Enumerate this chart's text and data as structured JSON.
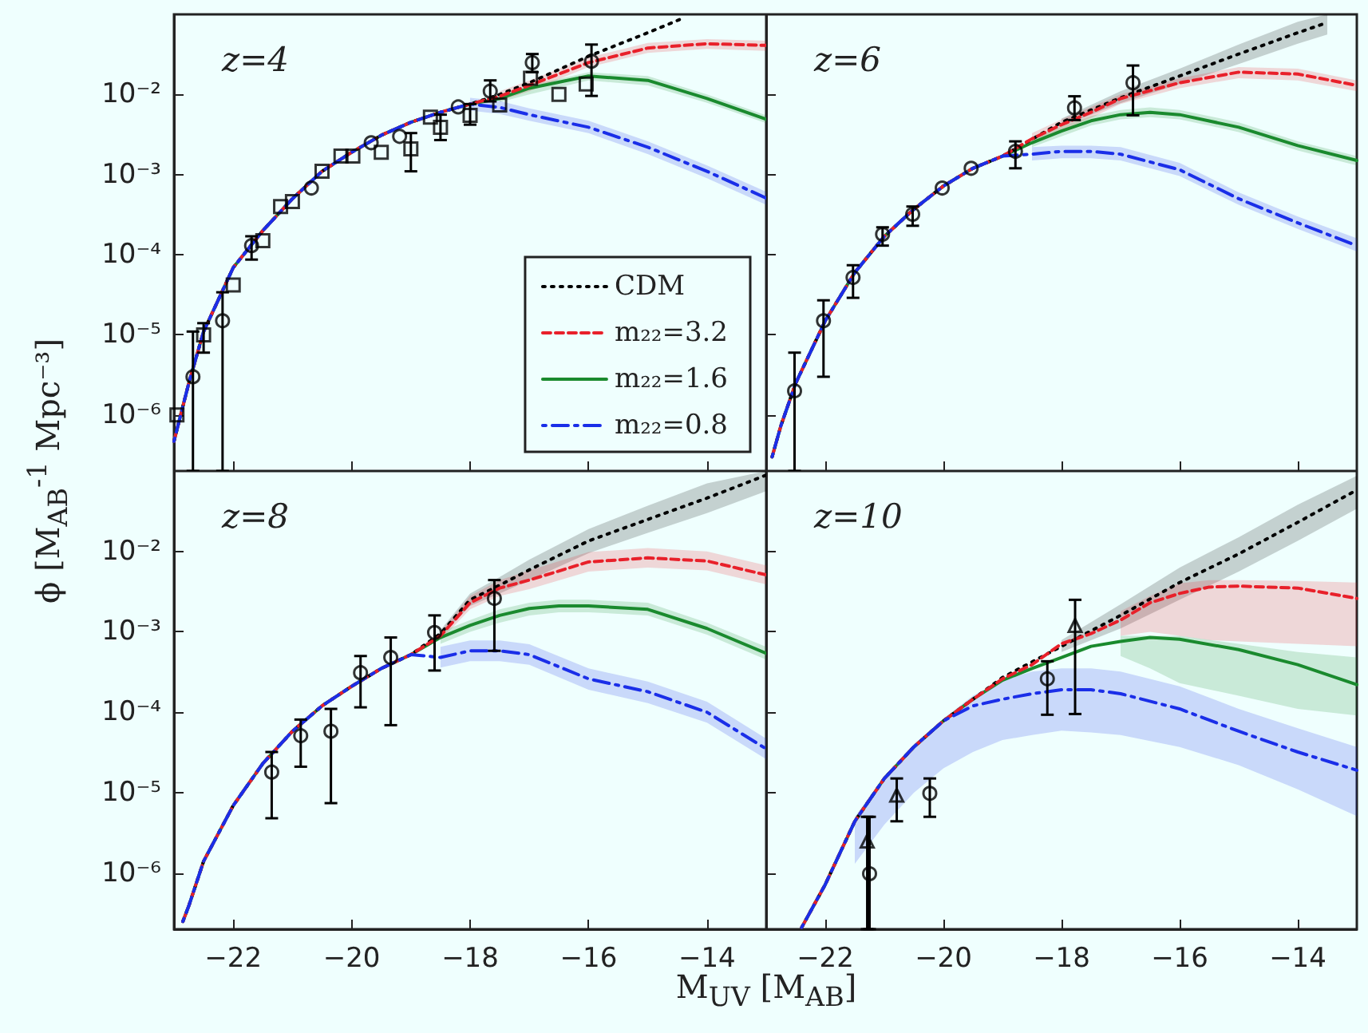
{
  "chart_data": [
    {
      "type": "line",
      "annotations": [
        "z=4"
      ],
      "ylabel": "ϕ [M$_{AB}$$^{-1}$ Mpc⁻³]",
      "log": "y",
      "legend": "bottom right",
      "tick_labels": "y",
      "xlim": [
        -23,
        -13
      ],
      "xticks": [
        {
          "value": -22,
          "label": null
        },
        {
          "value": -20,
          "label": null
        },
        {
          "value": -18,
          "label": null
        },
        {
          "value": -16,
          "label": null
        },
        {
          "value": -14,
          "label": null
        }
      ],
      "ylim": [
        2e-07,
        0.1
      ],
      "yticks": [
        {
          "value": 1e-06,
          "label": "10⁻⁶"
        },
        {
          "value": 1e-05,
          "label": "10⁻⁵"
        },
        {
          "value": 0.0001,
          "label": "10⁻⁴"
        },
        {
          "value": 0.001,
          "label": "10⁻³"
        },
        {
          "value": 0.01,
          "label": "10⁻²"
        }
      ],
      "series": [
        {
          "type": "line",
          "name": "CDM",
          "color": "#000000",
          "line_style": "dotted",
          "x": [
            -23,
            -22.75,
            -22.5,
            -22,
            -21.5,
            -21,
            -20.5,
            -20,
            -19.5,
            -19,
            -18.5,
            -18,
            -17.5,
            -17,
            -16,
            -15,
            -14.4
          ],
          "values": [
            4.7e-07,
            2.5e-06,
            1.1e-05,
            6.9e-05,
            0.0002,
            0.0005,
            0.0011,
            0.0019,
            0.0031,
            0.0045,
            0.006,
            0.0076,
            0.01,
            0.014,
            0.03,
            0.059,
            0.09
          ]
        },
        {
          "type": "line",
          "name": "m₂₂=3.2",
          "color": "#e8202a",
          "line_style": "dashed",
          "x": [
            -23,
            -22.75,
            -22.5,
            -22,
            -21.5,
            -21,
            -20.5,
            -20,
            -19.5,
            -19,
            -18.5,
            -18,
            -17.5,
            -17,
            -16,
            -15,
            -14,
            -13
          ],
          "values": [
            4.7e-07,
            2.5e-06,
            1.1e-05,
            6.9e-05,
            0.0002,
            0.0005,
            0.0011,
            0.0019,
            0.0031,
            0.0045,
            0.006,
            0.0076,
            0.0095,
            0.013,
            0.025,
            0.038,
            0.043,
            0.041
          ],
          "lower": [
            null,
            null,
            null,
            null,
            null,
            null,
            null,
            null,
            null,
            null,
            null,
            null,
            0.0083,
            0.011,
            0.022,
            0.033,
            0.037,
            0.035
          ],
          "upper": [
            null,
            null,
            null,
            null,
            null,
            null,
            null,
            null,
            null,
            null,
            null,
            null,
            0.011,
            0.015,
            0.029,
            0.044,
            0.049,
            0.047
          ]
        },
        {
          "type": "line",
          "name": "m₂₂=1.6",
          "color": "#1a8a2e",
          "line_style": "solid",
          "x": [
            -23,
            -22.75,
            -22.5,
            -22,
            -21.5,
            -21,
            -20.5,
            -20,
            -19.5,
            -19,
            -18.5,
            -18,
            -17.5,
            -17,
            -16,
            -15,
            -14,
            -13
          ],
          "values": [
            4.7e-07,
            2.5e-06,
            1.1e-05,
            6.9e-05,
            0.0002,
            0.0005,
            0.0011,
            0.0019,
            0.0031,
            0.0045,
            0.006,
            0.0076,
            0.0089,
            0.012,
            0.017,
            0.015,
            0.0089,
            0.0049
          ],
          "lower": [
            null,
            null,
            null,
            null,
            null,
            null,
            null,
            null,
            null,
            null,
            null,
            null,
            0.008,
            0.01,
            0.015,
            0.013,
            0.0079,
            0.0044
          ],
          "upper": [
            null,
            null,
            null,
            null,
            null,
            null,
            null,
            null,
            null,
            null,
            null,
            null,
            0.01,
            0.013,
            0.019,
            0.017,
            0.01,
            0.0055
          ]
        },
        {
          "type": "line",
          "name": "m₂₂=0.8",
          "color": "#1a2ee8",
          "line_style": "dashdot",
          "x": [
            -23,
            -22.75,
            -22.5,
            -22,
            -21.5,
            -21,
            -20.5,
            -20,
            -19.5,
            -19,
            -18.5,
            -18,
            -17.5,
            -17,
            -16,
            -15,
            -14,
            -13
          ],
          "values": [
            4.7e-07,
            2.5e-06,
            1.1e-05,
            6.9e-05,
            0.0002,
            0.0005,
            0.0011,
            0.0019,
            0.0031,
            0.0045,
            0.006,
            0.0076,
            0.0069,
            0.0056,
            0.0039,
            0.0022,
            0.0011,
            0.00051
          ],
          "lower": [
            null,
            null,
            null,
            null,
            null,
            null,
            null,
            null,
            null,
            null,
            null,
            0.0063,
            0.0057,
            0.0047,
            0.0033,
            0.0018,
            0.0009,
            0.00042
          ],
          "upper": [
            null,
            null,
            null,
            null,
            null,
            null,
            null,
            null,
            null,
            null,
            null,
            0.0091,
            0.0083,
            0.0067,
            0.0047,
            0.0026,
            0.0013,
            0.00061
          ]
        },
        {
          "type": "scatter",
          "color": "#000000",
          "marker": "circle",
          "x": [
            -22.68,
            -22.18,
            -21.69,
            -20.68,
            -19.67,
            -19.19,
            -18.2,
            -17.66,
            -16.95,
            -15.95
          ],
          "values": [
            3e-06,
            1.5e-05,
            0.00013,
            0.00068,
            0.0025,
            0.003,
            0.007,
            0.011,
            0.025,
            0.026
          ],
          "errors": [
            [
              2e-07,
              1.1e-05
            ],
            [
              2e-07,
              3.4e-05
            ],
            [
              8.7e-05,
              0.00017
            ],
            null,
            null,
            null,
            null,
            [
              0.0082,
              0.015
            ],
            [
              0.019,
              0.032
            ],
            [
              0.0096,
              0.042
            ]
          ]
        },
        {
          "type": "scatter",
          "color": "#000000",
          "marker": "square",
          "x": [
            -22.95,
            -22.5,
            -22.0,
            -21.5,
            -21.2,
            -21.0,
            -20.5,
            -20.18,
            -19.98,
            -19.5,
            -19.0,
            -18.67,
            -18.5,
            -18.0,
            -17.5,
            -16.98,
            -16.5,
            -16.04
          ],
          "values": [
            1e-06,
            1e-05,
            4.2e-05,
            0.00015,
            0.0004,
            0.00046,
            0.0011,
            0.0017,
            0.0017,
            0.0019,
            0.0021,
            0.0052,
            0.0039,
            0.0055,
            0.0074,
            0.016,
            0.01,
            0.0135
          ],
          "errors": [
            null,
            [
              6e-06,
              1.4e-05
            ],
            null,
            null,
            null,
            null,
            null,
            null,
            null,
            null,
            [
              0.0011,
              0.0033
            ],
            null,
            [
              0.0027,
              0.0056
            ],
            [
              0.0042,
              0.0076
            ],
            null,
            null,
            null,
            null
          ]
        }
      ]
    },
    {
      "type": "line",
      "annotations": [
        "z=6"
      ],
      "log": "y",
      "tick_labels": false,
      "xlim": [
        -23,
        -13
      ],
      "xticks": [
        {
          "value": -22,
          "label": null
        },
        {
          "value": -20,
          "label": null
        },
        {
          "value": -18,
          "label": null
        },
        {
          "value": -16,
          "label": null
        },
        {
          "value": -14,
          "label": null
        }
      ],
      "ylim": [
        2e-07,
        0.1
      ],
      "yticks": [
        {
          "value": 1e-06,
          "label": null
        },
        {
          "value": 1e-05,
          "label": null
        },
        {
          "value": 0.0001,
          "label": null
        },
        {
          "value": 0.001,
          "label": null
        },
        {
          "value": 0.01,
          "label": null
        }
      ],
      "series": [
        {
          "type": "line",
          "color": "#000000",
          "line_style": "dotted",
          "x": [
            -22.9,
            -22.75,
            -22.5,
            -22,
            -21.5,
            -21,
            -20.5,
            -20,
            -19.5,
            -19,
            -18,
            -17,
            -16,
            -15,
            -14,
            -13.5
          ],
          "values": [
            3e-07,
            7.4e-07,
            2.5e-06,
            1.5e-05,
            6e-05,
            0.00017,
            0.00037,
            0.00072,
            0.0012,
            0.0017,
            0.0045,
            0.0091,
            0.017,
            0.032,
            0.059,
            0.079
          ],
          "lower": [
            null,
            null,
            null,
            null,
            null,
            null,
            null,
            null,
            null,
            null,
            0.004,
            0.0078,
            0.0135,
            0.024,
            0.043,
            0.056
          ],
          "upper": [
            null,
            null,
            null,
            null,
            null,
            null,
            null,
            null,
            null,
            null,
            0.005,
            0.011,
            0.021,
            0.042,
            0.081,
            0.1
          ]
        },
        {
          "type": "line",
          "color": "#e8202a",
          "line_style": "dashed",
          "x": [
            -22.9,
            -22.75,
            -22.5,
            -22,
            -21.5,
            -21,
            -20.5,
            -20,
            -19.5,
            -19,
            -18.5,
            -18,
            -17.5,
            -17,
            -16,
            -15,
            -14,
            -13
          ],
          "values": [
            3e-07,
            7.4e-07,
            2.5e-06,
            1.5e-05,
            6e-05,
            0.00017,
            0.00037,
            0.00072,
            0.0012,
            0.0017,
            0.0028,
            0.0042,
            0.006,
            0.0089,
            0.014,
            0.019,
            0.018,
            0.013
          ],
          "lower": [
            null,
            null,
            null,
            null,
            null,
            null,
            null,
            null,
            null,
            null,
            0.0024,
            0.0036,
            0.0051,
            0.0076,
            0.012,
            0.016,
            0.015,
            0.011
          ],
          "upper": [
            null,
            null,
            null,
            null,
            null,
            null,
            null,
            null,
            null,
            null,
            0.0033,
            0.0049,
            0.007,
            0.01,
            0.016,
            0.022,
            0.021,
            0.015
          ]
        },
        {
          "type": "line",
          "color": "#1a8a2e",
          "line_style": "solid",
          "x": [
            -22.9,
            -22.75,
            -22.5,
            -22,
            -21.5,
            -21,
            -20.5,
            -20,
            -19.5,
            -19,
            -18.5,
            -18,
            -17.5,
            -17,
            -16.5,
            -16,
            -15,
            -14,
            -13
          ],
          "values": [
            3e-07,
            7.4e-07,
            2.5e-06,
            1.5e-05,
            6e-05,
            0.00017,
            0.00037,
            0.00072,
            0.0012,
            0.0017,
            0.0025,
            0.0035,
            0.0047,
            0.0056,
            0.006,
            0.0056,
            0.0039,
            0.0023,
            0.0015
          ],
          "lower": [
            null,
            null,
            null,
            null,
            null,
            null,
            null,
            null,
            null,
            null,
            0.0022,
            0.003,
            0.0041,
            0.0049,
            0.0052,
            0.0049,
            0.0034,
            0.002,
            0.0013
          ],
          "upper": [
            null,
            null,
            null,
            null,
            null,
            null,
            null,
            null,
            null,
            null,
            0.0029,
            0.004,
            0.0054,
            0.0064,
            0.0069,
            0.0064,
            0.0045,
            0.0026,
            0.0017
          ]
        },
        {
          "type": "line",
          "color": "#1a2ee8",
          "line_style": "dashdot",
          "x": [
            -22.9,
            -22.75,
            -22.5,
            -22,
            -21.5,
            -21,
            -20.5,
            -20,
            -19.5,
            -19,
            -18.5,
            -18,
            -17.5,
            -17,
            -16,
            -15,
            -14,
            -13
          ],
          "values": [
            3e-07,
            7.4e-07,
            2.5e-06,
            1.5e-05,
            6e-05,
            0.00017,
            0.00037,
            0.00072,
            0.0012,
            0.0017,
            0.0018,
            0.00195,
            0.00195,
            0.0018,
            0.00115,
            0.0005,
            0.00025,
            0.00013
          ],
          "lower": [
            null,
            null,
            null,
            null,
            null,
            null,
            null,
            null,
            null,
            null,
            0.0015,
            0.0016,
            0.0016,
            0.0015,
            0.00096,
            0.00042,
            0.00021,
            0.00011
          ],
          "upper": [
            null,
            null,
            null,
            null,
            null,
            null,
            null,
            null,
            null,
            null,
            0.0022,
            0.0023,
            0.0023,
            0.0022,
            0.0014,
            0.0006,
            0.0003,
            0.00016
          ]
        },
        {
          "type": "scatter",
          "color": "#000000",
          "marker": "circle",
          "x": [
            -22.52,
            -22.03,
            -21.53,
            -21.03,
            -20.52,
            -20.02,
            -19.53,
            -18.78,
            -17.78,
            -16.79
          ],
          "values": [
            2e-06,
            1.5e-05,
            5.2e-05,
            0.00018,
            0.00032,
            0.00068,
            0.0012,
            0.00195,
            0.0068,
            0.014
          ],
          "errors": [
            [
              2e-07,
              6e-06
            ],
            [
              3e-06,
              2.7e-05
            ],
            [
              2.9e-05,
              7.4e-05
            ],
            [
              0.00013,
              0.00022
            ],
            [
              0.00023,
              0.0004
            ],
            null,
            null,
            [
              0.0012,
              0.0026
            ],
            [
              0.0048,
              0.0095
            ],
            [
              0.0055,
              0.023
            ]
          ]
        }
      ]
    },
    {
      "type": "line",
      "annotations": [
        "z=8"
      ],
      "log": "y",
      "xlabel": "M$_{UV}$ [M$_{AB}$]",
      "xlim": [
        -23,
        -13
      ],
      "xticks": [
        {
          "value": -22,
          "label": "−22"
        },
        {
          "value": -20,
          "label": "−20"
        },
        {
          "value": -18,
          "label": "−18"
        },
        {
          "value": -16,
          "label": "−16"
        },
        {
          "value": -14,
          "label": "−14"
        }
      ],
      "ylim": [
        2e-07,
        0.1
      ],
      "yticks": [
        {
          "value": 1e-06,
          "label": "10⁻⁶"
        },
        {
          "value": 1e-05,
          "label": "10⁻⁵"
        },
        {
          "value": 0.0001,
          "label": "10⁻⁴"
        },
        {
          "value": 0.001,
          "label": "10⁻³"
        },
        {
          "value": 0.01,
          "label": "10⁻²"
        }
      ],
      "series": [
        {
          "type": "line",
          "color": "#000000",
          "line_style": "dotted",
          "x": [
            -22.85,
            -22.75,
            -22.5,
            -22,
            -21.5,
            -21,
            -20.5,
            -20,
            -19.5,
            -19,
            -18.5,
            -18,
            -17.5,
            -17,
            -16,
            -15,
            -14,
            -13
          ],
          "values": [
            2.5e-07,
            3.9e-07,
            1.4e-06,
            6.9e-06,
            2.3e-05,
            5.8e-05,
            0.00012,
            0.00021,
            0.00035,
            0.00052,
            0.00095,
            0.0025,
            0.0038,
            0.0059,
            0.0135,
            0.025,
            0.046,
            0.089
          ],
          "lower": [
            null,
            null,
            null,
            null,
            null,
            null,
            null,
            null,
            null,
            null,
            0.00087,
            0.0021,
            0.003,
            0.0044,
            0.0095,
            0.017,
            0.03,
            0.056
          ],
          "upper": [
            null,
            null,
            null,
            null,
            null,
            null,
            null,
            null,
            null,
            null,
            0.00105,
            0.003,
            0.0048,
            0.0079,
            0.019,
            0.037,
            0.07,
            0.1
          ]
        },
        {
          "type": "line",
          "color": "#e8202a",
          "line_style": "dashed",
          "x": [
            -22.85,
            -22.75,
            -22.5,
            -22,
            -21.5,
            -21,
            -20.5,
            -20,
            -19.5,
            -19,
            -18.5,
            -18,
            -17.5,
            -17,
            -16,
            -15,
            -14,
            -13
          ],
          "values": [
            2.5e-07,
            3.9e-07,
            1.4e-06,
            6.9e-06,
            2.3e-05,
            5.8e-05,
            0.00012,
            0.00021,
            0.00035,
            0.00052,
            0.00089,
            0.0023,
            0.0035,
            0.0044,
            0.0074,
            0.0083,
            0.0076,
            0.0051
          ],
          "lower": [
            null,
            null,
            null,
            null,
            null,
            null,
            null,
            null,
            null,
            null,
            0.00079,
            0.0019,
            0.0028,
            0.0034,
            0.0056,
            0.0063,
            0.0058,
            0.0039
          ],
          "upper": [
            null,
            null,
            null,
            null,
            null,
            null,
            null,
            null,
            null,
            null,
            0.001,
            0.0028,
            0.0044,
            0.0058,
            0.0098,
            0.011,
            0.01,
            0.0067
          ]
        },
        {
          "type": "line",
          "color": "#1a8a2e",
          "line_style": "solid",
          "x": [
            -22.85,
            -22.75,
            -22.5,
            -22,
            -21.5,
            -21,
            -20.5,
            -20,
            -19.5,
            -19,
            -18.5,
            -18,
            -17.5,
            -17,
            -16.5,
            -16,
            -15,
            -14,
            -13
          ],
          "values": [
            2.5e-07,
            3.9e-07,
            1.4e-06,
            6.9e-06,
            2.3e-05,
            5.8e-05,
            0.00012,
            0.00021,
            0.00035,
            0.00052,
            0.00085,
            0.0012,
            0.0016,
            0.00195,
            0.0021,
            0.0021,
            0.0019,
            0.0011,
            0.00054
          ],
          "lower": [
            null,
            null,
            null,
            null,
            null,
            null,
            null,
            null,
            null,
            null,
            0.00071,
            0.001,
            0.0013,
            0.0016,
            0.00175,
            0.00175,
            0.0016,
            0.00092,
            0.00045
          ],
          "upper": [
            null,
            null,
            null,
            null,
            null,
            null,
            null,
            null,
            null,
            null,
            0.001,
            0.0014,
            0.0019,
            0.0023,
            0.0025,
            0.0025,
            0.0023,
            0.0013,
            0.00065
          ]
        },
        {
          "type": "line",
          "color": "#1a2ee8",
          "line_style": "dashdot",
          "x": [
            -22.85,
            -22.75,
            -22.5,
            -22,
            -21.5,
            -21,
            -20.5,
            -20,
            -19.5,
            -19,
            -18.5,
            -18,
            -17.5,
            -17,
            -16,
            -15,
            -14,
            -13
          ],
          "values": [
            2.5e-07,
            3.9e-07,
            1.4e-06,
            6.9e-06,
            2.3e-05,
            5.8e-05,
            0.00012,
            0.00021,
            0.00035,
            0.00052,
            0.00048,
            0.00058,
            0.00058,
            0.00052,
            0.00026,
            0.00018,
            0.0001,
            3.5e-05
          ],
          "lower": [
            null,
            null,
            null,
            null,
            null,
            null,
            null,
            null,
            null,
            null,
            0.00036,
            0.00043,
            0.00043,
            0.00039,
            0.00019,
            0.00013,
            7.4e-05,
            2.6e-05
          ],
          "upper": [
            null,
            null,
            null,
            null,
            null,
            null,
            null,
            null,
            null,
            null,
            0.00065,
            0.00078,
            0.00078,
            0.0007,
            0.00035,
            0.00024,
            0.000135,
            4.7e-05
          ]
        },
        {
          "type": "scatter",
          "color": "#000000",
          "marker": "circle",
          "x": [
            -21.35,
            -20.86,
            -20.35,
            -19.85,
            -19.34,
            -18.6,
            -17.59
          ],
          "values": [
            1.8e-05,
            5.1e-05,
            5.8e-05,
            0.00031,
            0.00048,
            0.00098,
            0.0026
          ],
          "errors": [
            [
              4.8e-06,
              3.2e-05
            ],
            [
              2.1e-05,
              8.1e-05
            ],
            [
              7.4e-06,
              0.00011
            ],
            [
              0.000115,
              0.0005
            ],
            [
              6.9e-05,
              0.00085
            ],
            [
              0.00033,
              0.0016
            ],
            [
              0.00058,
              0.0044
            ]
          ]
        }
      ]
    },
    {
      "type": "line",
      "annotations": [
        "z=10"
      ],
      "log": "y",
      "tick_labels": "x",
      "xlim": [
        -23,
        -13
      ],
      "xticks": [
        {
          "value": -22,
          "label": "−22"
        },
        {
          "value": -20,
          "label": "−20"
        },
        {
          "value": -18,
          "label": "−18"
        },
        {
          "value": -16,
          "label": "−16"
        },
        {
          "value": -14,
          "label": "−14"
        }
      ],
      "ylim": [
        2e-07,
        0.1
      ],
      "yticks": [
        {
          "value": 1e-06,
          "label": null
        },
        {
          "value": 1e-05,
          "label": null
        },
        {
          "value": 0.0001,
          "label": null
        },
        {
          "value": 0.001,
          "label": null
        },
        {
          "value": 0.01,
          "label": null
        }
      ],
      "series": [
        {
          "type": "line",
          "color": "#000000",
          "line_style": "dotted",
          "x": [
            -22.4,
            -22,
            -21.5,
            -21,
            -20.5,
            -20,
            -19.5,
            -19,
            -18,
            -17,
            -16,
            -15,
            -14,
            -13
          ],
          "values": [
            2.1e-07,
            7.2e-07,
            4.4e-06,
            1.5e-05,
            3.7e-05,
            7.8e-05,
            0.000145,
            0.00027,
            0.00066,
            0.0016,
            0.0041,
            0.0093,
            0.023,
            0.058
          ],
          "lower": [
            null,
            null,
            null,
            null,
            null,
            null,
            null,
            null,
            0.00056,
            0.0011,
            0.0025,
            0.0056,
            0.0135,
            0.034
          ],
          "upper": [
            null,
            null,
            null,
            null,
            null,
            null,
            null,
            null,
            0.00079,
            0.0022,
            0.0063,
            0.015,
            0.038,
            0.087
          ]
        },
        {
          "type": "line",
          "color": "#e8202a",
          "line_style": "dashed",
          "x": [
            -22.4,
            -22,
            -21.5,
            -21,
            -20.5,
            -20,
            -19.5,
            -19,
            -18.5,
            -18,
            -17.5,
            -17,
            -16.5,
            -16,
            -15.5,
            -15,
            -14,
            -13
          ],
          "values": [
            2.1e-07,
            7.2e-07,
            4.4e-06,
            1.5e-05,
            3.7e-05,
            7.8e-05,
            0.000145,
            0.00026,
            0.00039,
            0.00071,
            0.00095,
            0.0014,
            0.0023,
            0.003,
            0.0036,
            0.0037,
            0.0035,
            0.0026
          ],
          "lower": [
            null,
            null,
            null,
            null,
            null,
            null,
            null,
            null,
            null,
            null,
            null,
            0.00089,
            0.001,
            0.00089,
            0.00079,
            0.00076,
            0.00071,
            0.00066
          ],
          "upper": [
            null,
            null,
            null,
            null,
            null,
            null,
            null,
            null,
            null,
            null,
            null,
            0.0018,
            0.0028,
            0.004,
            0.0044,
            0.0044,
            0.0043,
            0.0041
          ]
        },
        {
          "type": "line",
          "color": "#1a8a2e",
          "line_style": "solid",
          "x": [
            -22.4,
            -22,
            -21.5,
            -21,
            -20.5,
            -20,
            -19.5,
            -19,
            -18.5,
            -18,
            -17.5,
            -17,
            -16.5,
            -16,
            -15,
            -14,
            -13
          ],
          "values": [
            2.1e-07,
            7.2e-07,
            4.4e-06,
            1.5e-05,
            3.7e-05,
            7.8e-05,
            0.000145,
            0.00025,
            0.00035,
            0.00048,
            0.00066,
            0.00076,
            0.00085,
            0.00081,
            0.0006,
            0.00039,
            0.00022
          ],
          "lower": [
            null,
            null,
            null,
            null,
            null,
            null,
            null,
            null,
            null,
            null,
            null,
            0.0005,
            0.00035,
            0.00023,
            0.00016,
            0.00011,
            9.1e-05
          ],
          "upper": [
            null,
            null,
            null,
            null,
            null,
            null,
            null,
            null,
            null,
            null,
            null,
            0.00089,
            0.00089,
            0.00089,
            0.00071,
            0.00056,
            0.00048
          ]
        },
        {
          "type": "line",
          "color": "#1a2ee8",
          "line_style": "dashdot",
          "x": [
            -22.4,
            -22,
            -21.5,
            -21,
            -20.5,
            -20,
            -19.5,
            -19,
            -18.5,
            -18,
            -17.5,
            -17,
            -16,
            -15,
            -14,
            -13
          ],
          "values": [
            2.1e-07,
            7.2e-07,
            4.4e-06,
            1.5e-05,
            3.7e-05,
            7.8e-05,
            0.00012,
            0.000145,
            0.00017,
            0.00019,
            0.00019,
            0.00017,
            0.00011,
            5.8e-05,
            3.2e-05,
            1.9e-05
          ],
          "lower": [
            null,
            null,
            1.3e-06,
            4e-06,
            1e-05,
            2e-05,
            3.2e-05,
            4.5e-05,
            5.2e-05,
            5.9e-05,
            5.6e-05,
            5.2e-05,
            3.7e-05,
            2.2e-05,
            1.1e-05,
            5.1e-06
          ],
          "upper": [
            null,
            null,
            5e-06,
            1.6e-05,
            4e-05,
            8.3e-05,
            0.00016,
            0.00025,
            0.00032,
            0.00035,
            0.00035,
            0.00032,
            0.00021,
            0.00011,
            6.3e-05,
            3.7e-05
          ]
        },
        {
          "type": "scatter",
          "color": "#000000",
          "marker": "circle",
          "x": [
            -21.25,
            -20.23,
            -18.24
          ],
          "values": [
            9.8e-07,
            9.8e-06,
            0.00026
          ],
          "errors": [
            [
              2e-07,
              5e-06
            ],
            [
              5e-06,
              1.5e-05
            ],
            [
              9.3e-05,
              0.00043
            ]
          ]
        },
        {
          "type": "scatter",
          "color": "#000000",
          "marker": "triangle",
          "x": [
            -21.29,
            -20.79,
            -17.77
          ],
          "values": [
            2.5e-06,
            9.3e-06,
            0.0012
          ],
          "errors": [
            [
              2e-07,
              5e-06
            ],
            [
              4.4e-06,
              1.5e-05
            ],
            [
              9.5e-05,
              0.0025
            ]
          ]
        }
      ]
    }
  ]
}
